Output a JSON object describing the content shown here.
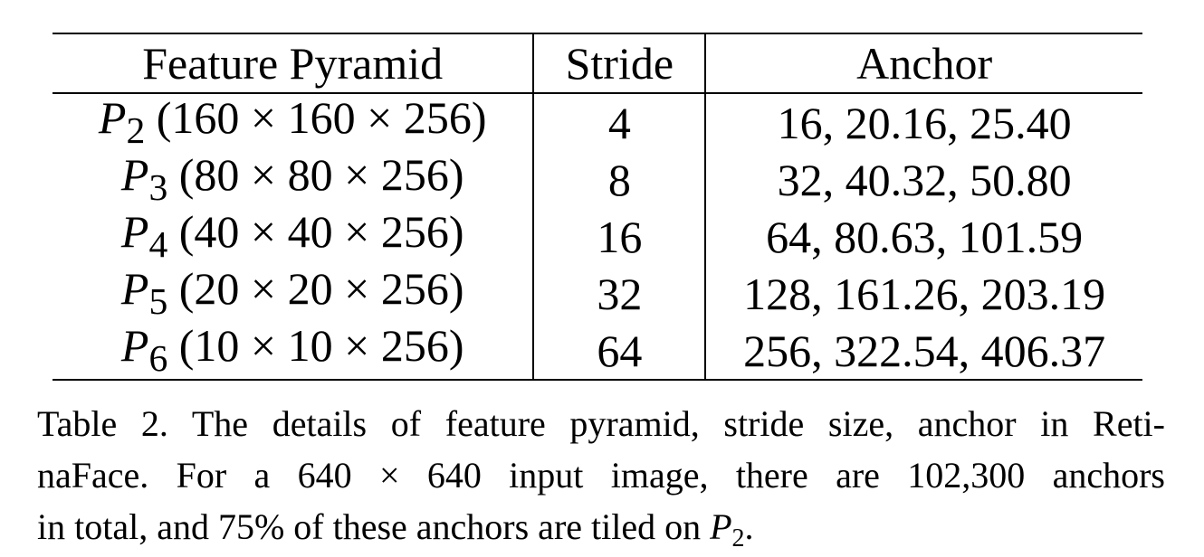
{
  "table": {
    "headers": [
      "Feature Pyramid",
      "Stride",
      "Anchor"
    ],
    "rows": [
      {
        "level_symbol": "P",
        "level_sub": "2",
        "shape": "(160 × 160 × 256)",
        "stride": "4",
        "anchors": "16, 20.16, 25.40"
      },
      {
        "level_symbol": "P",
        "level_sub": "3",
        "shape": "(80 × 80 × 256)",
        "stride": "8",
        "anchors": "32, 40.32, 50.80"
      },
      {
        "level_symbol": "P",
        "level_sub": "4",
        "shape": "(40 × 40 × 256)",
        "stride": "16",
        "anchors": "64, 80.63, 101.59"
      },
      {
        "level_symbol": "P",
        "level_sub": "5",
        "shape": "(20 × 20 × 256)",
        "stride": "32",
        "anchors": "128, 161.26, 203.19"
      },
      {
        "level_symbol": "P",
        "level_sub": "6",
        "shape": "(10 × 10 × 256)",
        "stride": "64",
        "anchors": "256, 322.54, 406.37"
      }
    ]
  },
  "caption": {
    "line1": "Table 2. The details of feature pyramid, stride size, anchor in Reti-",
    "line2": "naFace. For a 640 × 640 input image, there are 102,300 anchors",
    "line3_text": "in total, and 75% of these anchors are tiled on",
    "line3_symbol": "P",
    "line3_sub": "2",
    "line3_end": "."
  }
}
